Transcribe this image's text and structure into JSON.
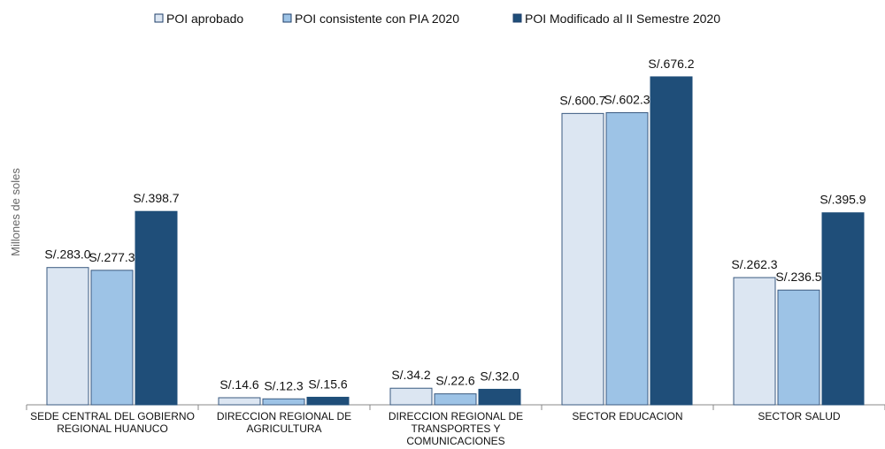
{
  "chart_data": {
    "type": "bar",
    "y_label": "Millones de soles",
    "categories": [
      "SEDE CENTRAL DEL GOBIERNO REGIONAL HUANUCO",
      "DIRECCION REGIONAL DE AGRICULTURA",
      "DIRECCION REGIONAL DE TRANSPORTES Y COMUNICACIONES",
      "SECTOR EDUCACION",
      "SECTOR SALUD"
    ],
    "series": [
      {
        "name": "POI aprobado",
        "color": "#dce6f2",
        "values": [
          283.0,
          14.6,
          34.2,
          600.7,
          262.3
        ],
        "value_labels": [
          "S/.283.0",
          "S/.14.6",
          "S/.34.2",
          "S/.600.7",
          "S/.262.3"
        ]
      },
      {
        "name": "POI consistente con PIA 2020",
        "color": "#9dc3e6",
        "values": [
          277.3,
          12.3,
          22.6,
          602.3,
          236.5
        ],
        "value_labels": [
          "S/.277.3",
          "S/.12.3",
          "S/.22.6",
          "S/.602.3",
          "S/.236.5"
        ]
      },
      {
        "name": "POI Modificado al II Semestre 2020",
        "color": "#1f4e79",
        "values": [
          398.7,
          15.6,
          32.0,
          676.2,
          395.9
        ],
        "value_labels": [
          "S/.398.7",
          "S/.15.6",
          "S/.32.0",
          "S/.676.2",
          "S/.395.9"
        ]
      }
    ],
    "ylim": [
      0,
      800
    ],
    "legend": "top"
  }
}
